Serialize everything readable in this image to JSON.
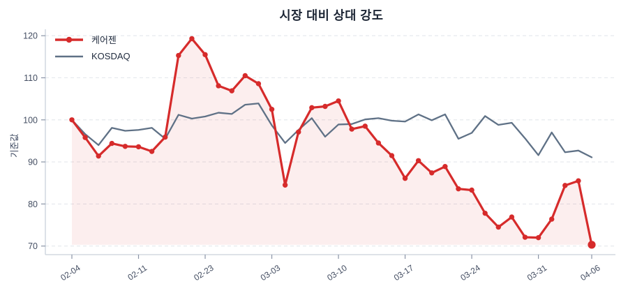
{
  "chart_data": {
    "type": "line",
    "title": "시장 대비 상대 강도",
    "ylabel": "기준값",
    "ylim": [
      68,
      122
    ],
    "yticks": [
      70,
      80,
      90,
      100,
      110,
      120
    ],
    "x_labels": [
      "02-04",
      "02-11",
      "02-23",
      "03-03",
      "03-10",
      "03-17",
      "03-24",
      "03-31",
      "04-06"
    ],
    "x_label_indices": [
      0,
      5,
      10,
      15,
      20,
      25,
      30,
      35,
      39
    ],
    "n_points": 40,
    "grid": "horizontal-dashed",
    "legend_position": "top-left",
    "series": [
      {
        "name": "케어젠",
        "color": "#d62b2b",
        "marker": "circle",
        "area_fill": true,
        "last_point_emphasis": true,
        "values": [
          100.0,
          95.8,
          91.4,
          94.4,
          93.7,
          93.6,
          92.5,
          95.9,
          115.3,
          119.3,
          115.5,
          108.1,
          106.9,
          110.5,
          108.6,
          102.5,
          84.5,
          97.1,
          102.9,
          103.2,
          104.5,
          97.8,
          98.5,
          94.5,
          91.5,
          86.1,
          90.3,
          87.4,
          88.9,
          83.6,
          83.3,
          77.8,
          74.5,
          76.9,
          72.1,
          72.0,
          76.4,
          84.4,
          85.5,
          70.3
        ]
      },
      {
        "name": "KOSDAQ",
        "color": "#5f7186",
        "marker": "none",
        "area_fill": false,
        "last_point_emphasis": false,
        "values": [
          100.0,
          96.6,
          94.0,
          98.1,
          97.4,
          97.6,
          98.1,
          95.5,
          101.2,
          100.3,
          100.8,
          101.7,
          101.4,
          103.6,
          103.9,
          98.7,
          94.5,
          97.6,
          100.4,
          96.0,
          98.9,
          99.0,
          100.1,
          100.4,
          99.8,
          99.6,
          101.3,
          99.9,
          101.3,
          95.5,
          96.9,
          100.9,
          98.8,
          99.3,
          95.6,
          91.6,
          97.0,
          92.3,
          92.7,
          91.1
        ]
      }
    ]
  },
  "colors": {
    "caregen_line": "#d62b2b",
    "kosdaq_line": "#5f7186",
    "area_fill": "rgba(214, 43, 43, 0.08)",
    "gridline": "#e4e7ec",
    "spine": "#c9d1db",
    "tick_mark": "#8a94a6",
    "tick_label": "#454f63",
    "title_text": "#1b2433",
    "legend_text": "#1f2a3d"
  }
}
